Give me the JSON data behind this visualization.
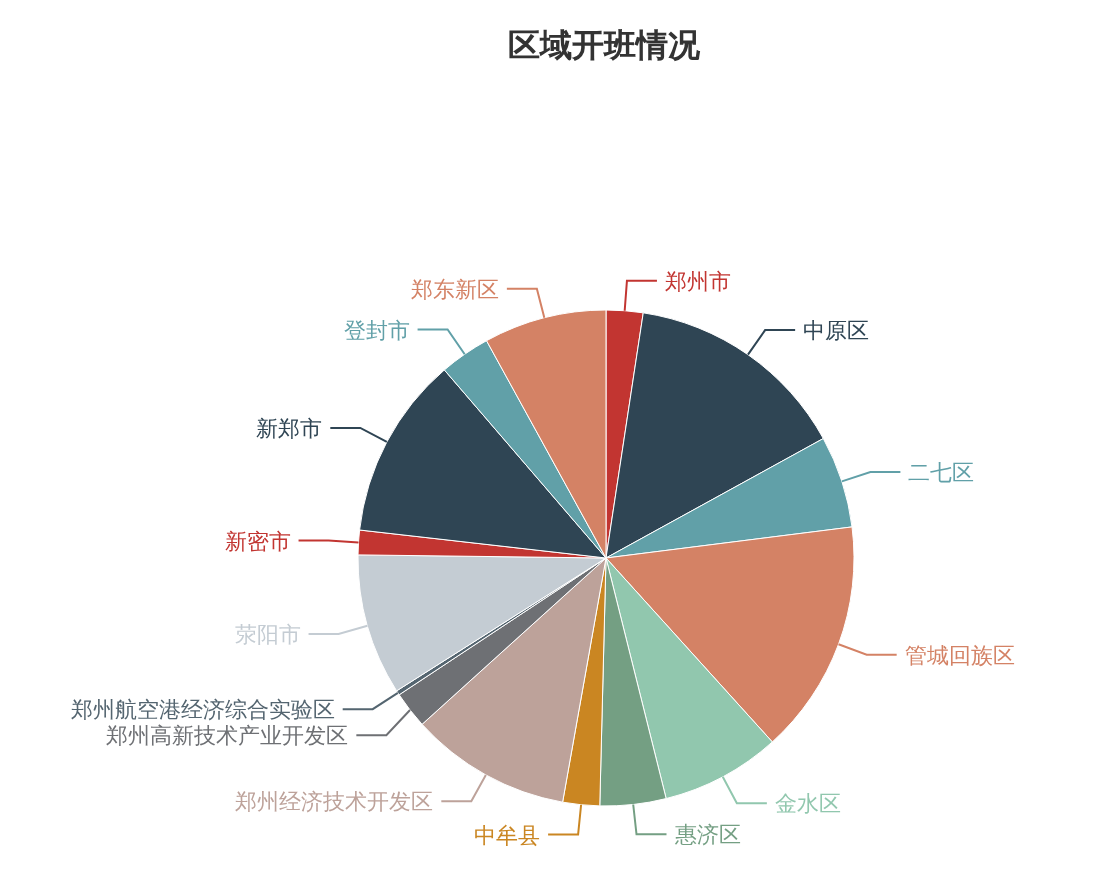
{
  "chart_data": {
    "type": "pie",
    "title": "区域开班情况",
    "categories": [
      "郑州市",
      "中原区",
      "二七区",
      "管城回族区",
      "金水区",
      "惠济区",
      "中牟县",
      "郑州经济技术开发区",
      "郑州高新技术产业开发区",
      "郑州航空港经济综合实验区",
      "荥阳市",
      "新密市",
      "新郑市",
      "登封市",
      "郑东新区"
    ],
    "values": [
      2.4,
      14.6,
      6.0,
      15.3,
      7.8,
      4.3,
      2.4,
      10.5,
      2.4,
      0.3,
      9.2,
      1.6,
      11.9,
      3.3,
      8.0
    ],
    "colors": [
      "#c23531",
      "#2f4554",
      "#61a0a8",
      "#d48265",
      "#91c7ae",
      "#749f83",
      "#ca8622",
      "#bda29a",
      "#6e7074",
      "#546570",
      "#c4ccd3",
      "#c23531",
      "#2f4554",
      "#61a0a8",
      "#d48265"
    ],
    "legend": false
  }
}
